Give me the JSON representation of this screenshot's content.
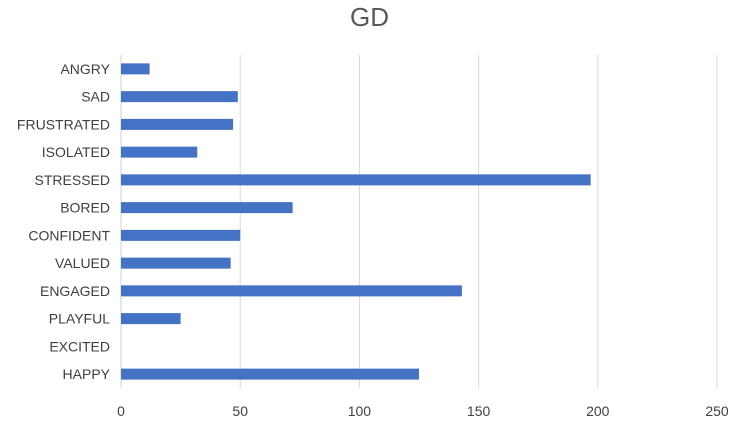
{
  "chart_data": {
    "type": "bar",
    "orientation": "horizontal",
    "title": "GD",
    "categories": [
      "ANGRY",
      "SAD",
      "FRUSTRATED",
      "ISOLATED",
      "STRESSED",
      "BORED",
      "CONFIDENT",
      "VALUED",
      "ENGAGED",
      "PLAYFUL",
      "EXCITED",
      "HAPPY"
    ],
    "values": [
      12,
      49,
      47,
      32,
      197,
      72,
      50,
      46,
      143,
      25,
      0,
      125
    ],
    "xlim": [
      0,
      250
    ],
    "xticks": [
      0,
      50,
      100,
      150,
      200,
      250
    ],
    "grid": "vertical",
    "legend": "none",
    "bar_color": "#4472C4",
    "grid_color": "#d9d9d9"
  }
}
